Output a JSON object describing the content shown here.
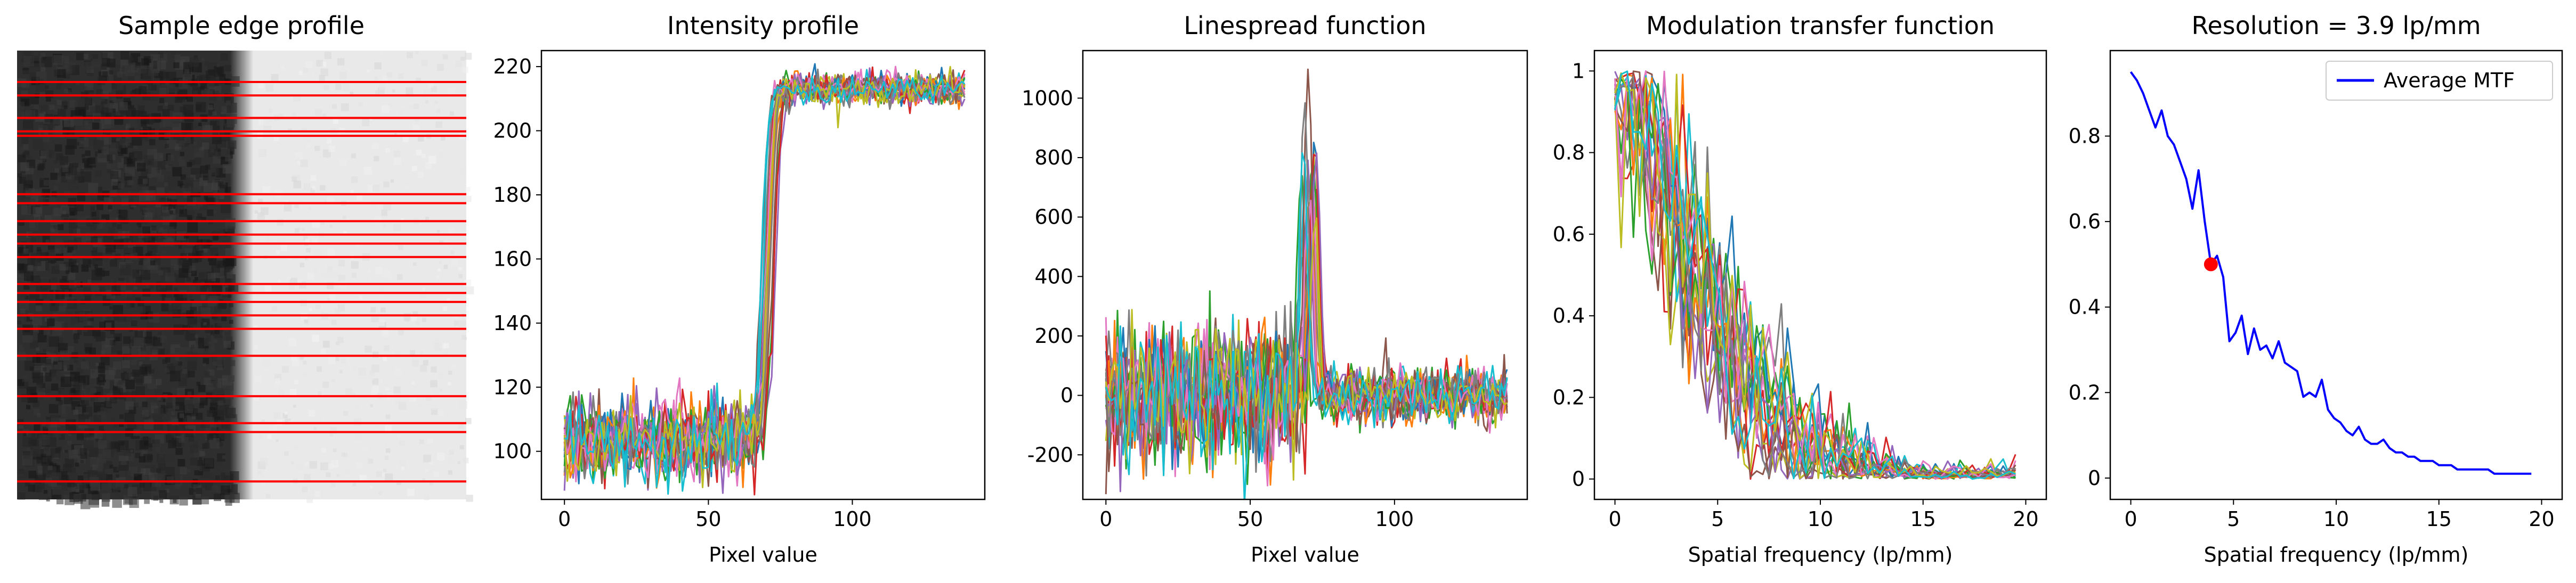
{
  "figure": {
    "background": "#ffffff"
  },
  "chart_data": [
    {
      "type": "image",
      "title": "Sample edge profile",
      "image_description": "grayscale edge: dark noisy region left, light region right, with red horizontal sample lines",
      "edge_x_fraction": 0.5,
      "dark_gray": "#2e2e2e",
      "light_gray": "#e9e9e9",
      "line_color": "#ff0000",
      "sample_line_positions_fraction": [
        0.07,
        0.1,
        0.15,
        0.18,
        0.19,
        0.32,
        0.34,
        0.38,
        0.41,
        0.43,
        0.46,
        0.52,
        0.54,
        0.56,
        0.59,
        0.62,
        0.68,
        0.77,
        0.83,
        0.85,
        0.96
      ],
      "grid": false
    },
    {
      "type": "line",
      "title": "Intensity profile",
      "xlabel": "Pixel value",
      "ylabel": "",
      "xlim": [
        -8,
        146
      ],
      "ylim": [
        85,
        225
      ],
      "xticks": [
        0,
        50,
        100
      ],
      "yticks": [
        100,
        120,
        140,
        160,
        180,
        200,
        220
      ],
      "n_series": 20,
      "x_range": [
        0,
        139
      ],
      "low_level": 103,
      "high_level": 213,
      "edge_center": 71,
      "noise_amplitude": 6,
      "edge_spread": 4,
      "grid": false
    },
    {
      "type": "line",
      "title": "Linespread function",
      "xlabel": "Pixel value",
      "ylabel": "",
      "xlim": [
        -8,
        146
      ],
      "ylim": [
        -350,
        1160
      ],
      "xticks": [
        0,
        50,
        100
      ],
      "yticks": [
        -200,
        0,
        200,
        400,
        600,
        800,
        1000
      ],
      "n_series": 20,
      "x_range": [
        0,
        139
      ],
      "peak_center": 71,
      "peak_height": 1050,
      "baseline_noise": 110,
      "grid": false
    },
    {
      "type": "line",
      "title": "Modulation transfer function",
      "xlabel": "Spatial frequency (lp/mm)",
      "ylabel": "",
      "xlim": [
        -1,
        21
      ],
      "ylim": [
        -0.05,
        1.05
      ],
      "xticks": [
        0,
        5,
        10,
        15,
        20
      ],
      "yticks": [
        0.0,
        0.2,
        0.4,
        0.6,
        0.8,
        1.0
      ],
      "n_series": 20,
      "x_range": [
        0,
        19.7
      ],
      "grid": false
    },
    {
      "type": "line",
      "title": "Resolution = 3.9 lp/mm",
      "xlabel": "Spatial frequency (lp/mm)",
      "ylabel": "",
      "xlim": [
        -1,
        21
      ],
      "ylim": [
        -0.05,
        1.0
      ],
      "xticks": [
        0,
        5,
        10,
        15,
        20
      ],
      "yticks": [
        0.0,
        0.2,
        0.4,
        0.6,
        0.8
      ],
      "legend": {
        "placement": "top-right",
        "entries": [
          "Average MTF"
        ]
      },
      "series": [
        {
          "name": "Average MTF",
          "color": "#0000ff",
          "x": [
            0,
            0.3,
            0.6,
            0.9,
            1.2,
            1.5,
            1.8,
            2.1,
            2.4,
            2.7,
            3.0,
            3.3,
            3.6,
            3.9,
            4.2,
            4.5,
            4.8,
            5.1,
            5.4,
            5.7,
            6.0,
            6.3,
            6.6,
            6.9,
            7.2,
            7.5,
            7.8,
            8.1,
            8.4,
            8.7,
            9.0,
            9.3,
            9.6,
            9.9,
            10.2,
            10.5,
            10.8,
            11.1,
            11.4,
            11.7,
            12.0,
            12.3,
            12.6,
            12.9,
            13.2,
            13.5,
            13.8,
            14.1,
            14.4,
            14.7,
            15.0,
            15.3,
            15.6,
            15.9,
            16.2,
            16.5,
            16.8,
            17.1,
            17.4,
            17.7,
            18.0,
            18.3,
            18.6,
            18.9,
            19.2,
            19.5
          ],
          "values": [
            0.95,
            0.93,
            0.9,
            0.86,
            0.82,
            0.86,
            0.8,
            0.78,
            0.74,
            0.7,
            0.63,
            0.72,
            0.6,
            0.5,
            0.52,
            0.47,
            0.32,
            0.34,
            0.38,
            0.29,
            0.35,
            0.3,
            0.31,
            0.28,
            0.32,
            0.27,
            0.26,
            0.25,
            0.19,
            0.2,
            0.19,
            0.23,
            0.16,
            0.14,
            0.13,
            0.11,
            0.1,
            0.12,
            0.09,
            0.08,
            0.08,
            0.09,
            0.07,
            0.06,
            0.06,
            0.05,
            0.05,
            0.04,
            0.04,
            0.04,
            0.03,
            0.03,
            0.03,
            0.02,
            0.02,
            0.02,
            0.02,
            0.02,
            0.02,
            0.01,
            0.01,
            0.01,
            0.01,
            0.01,
            0.01,
            0.01
          ]
        }
      ],
      "marker": {
        "x": 3.9,
        "y": 0.5,
        "color": "#ff0000"
      },
      "grid": false
    }
  ],
  "palette": [
    "#1f77b4",
    "#ff7f0e",
    "#2ca02c",
    "#d62728",
    "#9467bd",
    "#8c564b",
    "#e377c2",
    "#7f7f7f",
    "#bcbd22",
    "#17becf"
  ]
}
